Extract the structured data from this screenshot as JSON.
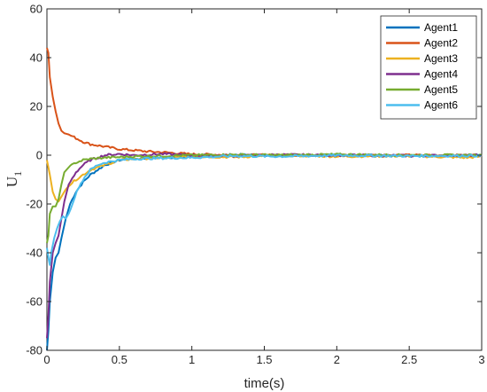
{
  "chart_data": {
    "type": "line",
    "xlabel": "time(s)",
    "ylabel_main": "U",
    "ylabel_sub": "1",
    "xlim": [
      0,
      3
    ],
    "ylim": [
      -80,
      60
    ],
    "x_ticks": [
      "0",
      "0.5",
      "1",
      "1.5",
      "2",
      "2.5",
      "3"
    ],
    "y_ticks": [
      "-80",
      "-60",
      "-40",
      "-20",
      "0",
      "20",
      "40",
      "60"
    ],
    "grid": false,
    "legend_position": "top-right",
    "series": [
      {
        "name": "Agent1",
        "color": "#0072BD",
        "x": [
          0,
          0.01,
          0.02,
          0.04,
          0.06,
          0.08,
          0.1,
          0.13,
          0.16,
          0.2,
          0.25,
          0.3,
          0.35,
          0.4,
          0.5,
          0.6,
          0.8,
          1.0,
          1.3,
          1.6,
          2.0,
          2.5,
          3.0
        ],
        "y": [
          -80,
          -72,
          -60,
          -48,
          -42,
          -40,
          -34,
          -26,
          -20,
          -15,
          -11,
          -8,
          -6,
          -4,
          -2,
          -1.5,
          -1,
          -0.5,
          0.2,
          -0.2,
          0.1,
          -0.3,
          0
        ]
      },
      {
        "name": "Agent2",
        "color": "#D95319",
        "x": [
          0,
          0.01,
          0.02,
          0.04,
          0.06,
          0.08,
          0.1,
          0.12,
          0.15,
          0.2,
          0.25,
          0.3,
          0.4,
          0.5,
          0.6,
          0.7,
          0.8,
          0.9,
          1.0,
          1.2,
          1.5,
          2.0,
          2.5,
          3.0
        ],
        "y": [
          44,
          42,
          32,
          24,
          18,
          13,
          10,
          9,
          8.5,
          7,
          5.5,
          4.5,
          3.5,
          2.5,
          2,
          1.5,
          1.2,
          0.8,
          0.4,
          0.2,
          0,
          0,
          0,
          0
        ]
      },
      {
        "name": "Agent3",
        "color": "#EDB120",
        "x": [
          0,
          0.02,
          0.04,
          0.06,
          0.08,
          0.1,
          0.13,
          0.16,
          0.2,
          0.25,
          0.3,
          0.4,
          0.5,
          0.6,
          0.8,
          1.0,
          1.3,
          1.6,
          2.0,
          2.5,
          2.9,
          3.0
        ],
        "y": [
          -2,
          -8,
          -15,
          -18,
          -19,
          -17,
          -14,
          -12,
          -10,
          -8,
          -6,
          -4,
          -2,
          -1.5,
          -1,
          -0.5,
          -0.8,
          0,
          -0.5,
          -0.3,
          -1,
          -0.5
        ]
      },
      {
        "name": "Agent4",
        "color": "#7E2F8E",
        "x": [
          0,
          0.01,
          0.02,
          0.04,
          0.06,
          0.08,
          0.1,
          0.12,
          0.15,
          0.2,
          0.25,
          0.3,
          0.35,
          0.4,
          0.5,
          0.6,
          0.8,
          1.0,
          1.3,
          1.6,
          2.0,
          2.5,
          3.0
        ],
        "y": [
          -75,
          -66,
          -52,
          -40,
          -36,
          -33,
          -26,
          -19,
          -12,
          -7,
          -4,
          -2,
          -1,
          0,
          0.5,
          0,
          0.5,
          0,
          -0.3,
          0.2,
          0,
          -0.2,
          0
        ]
      },
      {
        "name": "Agent5",
        "color": "#77AC30",
        "x": [
          0,
          0.01,
          0.02,
          0.04,
          0.06,
          0.08,
          0.1,
          0.12,
          0.15,
          0.2,
          0.25,
          0.3,
          0.4,
          0.5,
          0.6,
          0.8,
          1.0,
          1.3,
          1.6,
          2.0,
          2.5,
          3.0
        ],
        "y": [
          -36,
          -33,
          -24,
          -21,
          -21,
          -18,
          -12,
          -7,
          -5,
          -3,
          -2,
          -1.5,
          -1,
          -0.8,
          -0.5,
          -0.3,
          0,
          0.2,
          0,
          0.3,
          0,
          0
        ]
      },
      {
        "name": "Agent6",
        "color": "#4DBEEE",
        "x": [
          0,
          0.01,
          0.02,
          0.03,
          0.05,
          0.07,
          0.09,
          0.11,
          0.13,
          0.15,
          0.18,
          0.22,
          0.26,
          0.3,
          0.35,
          0.4,
          0.5,
          0.6,
          0.8,
          1.0,
          1.3,
          1.6,
          2.0,
          2.5,
          3.0
        ],
        "y": [
          -38,
          -42,
          -45,
          -40,
          -34,
          -30,
          -27,
          -25,
          -26,
          -24,
          -19,
          -13,
          -9,
          -6,
          -4,
          -3,
          -2,
          -1.5,
          -1.2,
          -1,
          -0.3,
          -0.5,
          -0.1,
          -0.3,
          -0.2
        ]
      }
    ]
  }
}
